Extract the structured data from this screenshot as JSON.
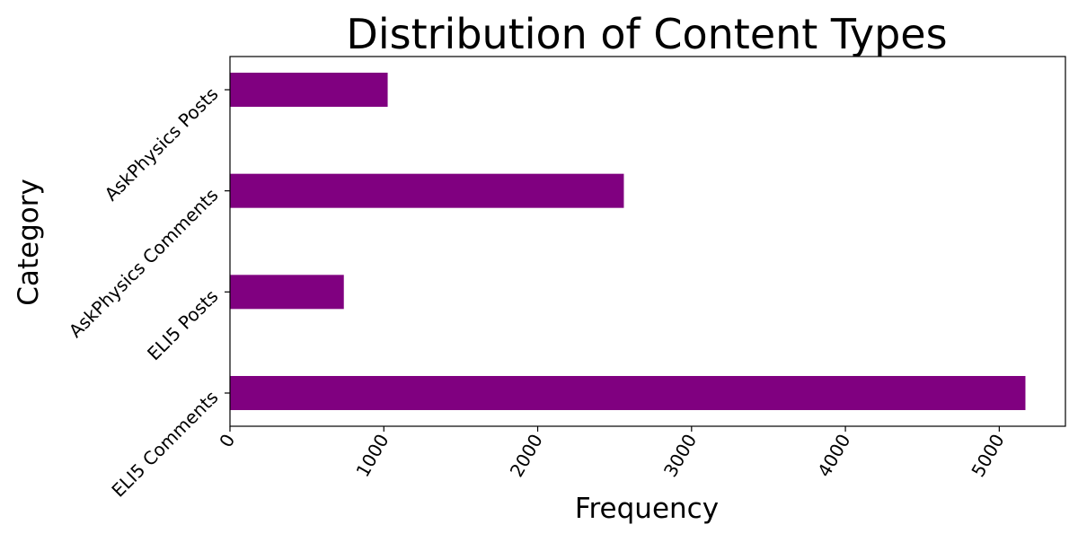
{
  "chart_data": {
    "type": "bar",
    "orientation": "horizontal",
    "title": "Distribution of Content Types",
    "xlabel": "Frequency",
    "ylabel": "Category",
    "categories": [
      "ELI5 Comments",
      "ELI5 Posts",
      "AskPhysics Comments",
      "AskPhysics Posts"
    ],
    "values": [
      5170,
      740,
      2560,
      1025
    ],
    "xlim": [
      0,
      5430
    ],
    "xticks": [
      0,
      1000,
      2000,
      3000,
      4000,
      5000
    ],
    "tick_labels": [
      "0",
      "1000",
      "2000",
      "3000",
      "4000",
      "5000"
    ],
    "bar_color": "#800080",
    "grid": false,
    "legend": "none"
  }
}
